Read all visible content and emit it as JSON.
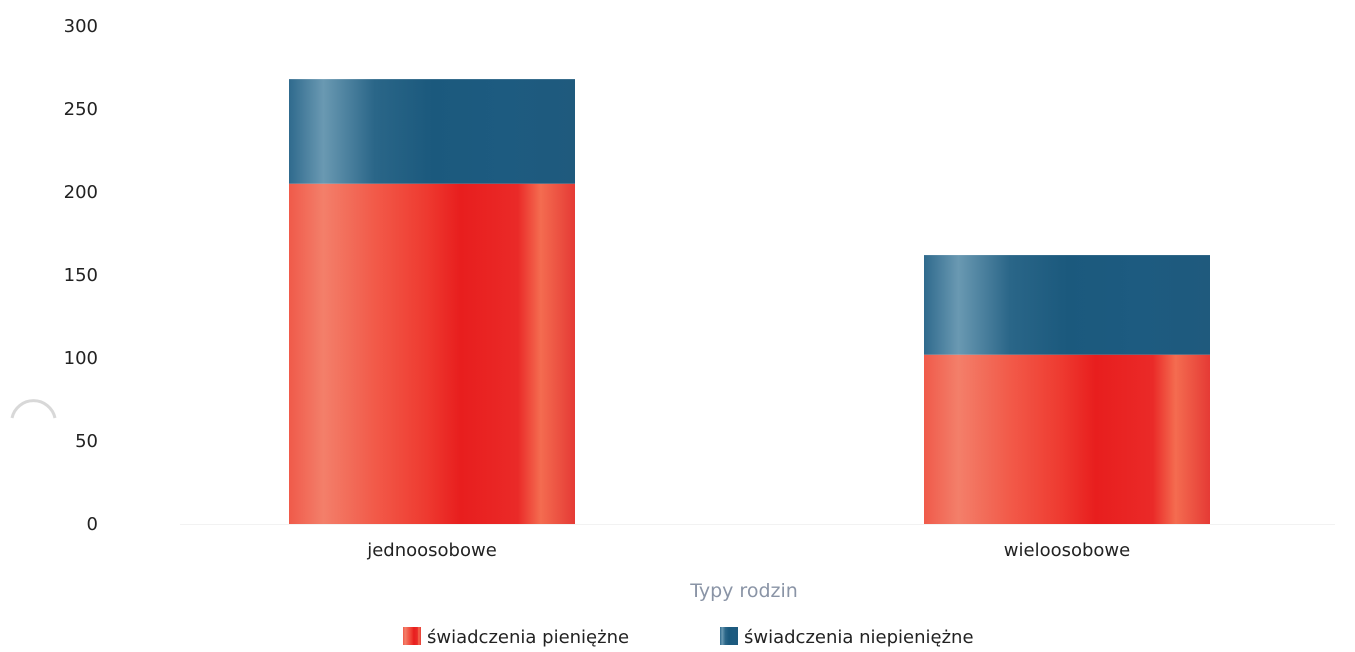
{
  "chart_data": {
    "type": "bar",
    "stacked": true,
    "categories": [
      "jednoosobowe",
      "wieloosobowe"
    ],
    "series": [
      {
        "name": "świadczenia pieniężne",
        "values": [
          205,
          102
        ],
        "color": "#f0403a"
      },
      {
        "name": "świadczenia niepieniężne",
        "values": [
          63,
          60
        ],
        "color": "#1f5f82"
      }
    ],
    "xlabel": "Typy rodzin",
    "ylabel": "",
    "ylim": [
      0,
      300
    ],
    "yticks": [
      0,
      50,
      100,
      150,
      200,
      250,
      300
    ],
    "grid": false,
    "legend_position": "bottom"
  }
}
